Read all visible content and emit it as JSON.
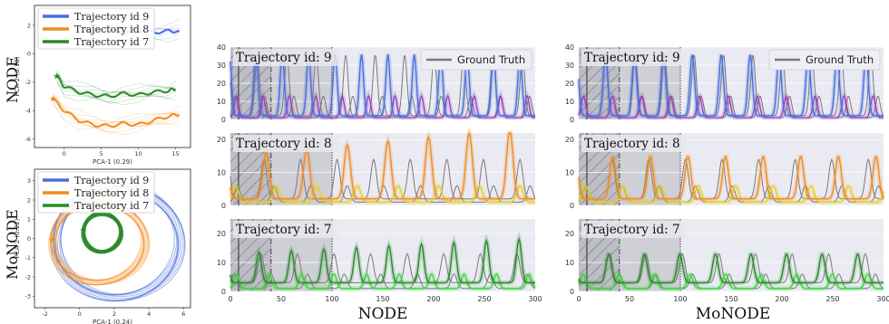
{
  "row_labels": {
    "top": "NODE",
    "bottom": "MoNODE"
  },
  "column_labels": {
    "node": "NODE",
    "monode": "MoNODE"
  },
  "chart_data": [
    {
      "type": "line",
      "panel": "pca-node",
      "xlabel": "PCA-1  (0.29)",
      "ylabel": "PCA-2  (0.18)",
      "xlim": [
        -4,
        17
      ],
      "ylim": [
        -6.6,
        3.4
      ],
      "xticks": [
        0,
        5,
        10,
        15
      ],
      "yticks": [
        2,
        0,
        -2,
        -4,
        -6
      ],
      "legend": [
        "Trajectory id 9",
        "Trajectory id 8",
        "Trajectory id 7"
      ],
      "series": [
        {
          "name": "Trajectory id 9",
          "color": "#4a6fdc",
          "x": [
            4,
            6,
            8,
            10,
            12,
            14,
            15.5
          ],
          "y": [
            1.5,
            1.6,
            1.5,
            1.7,
            1.5,
            1.6,
            1.6
          ]
        },
        {
          "name": "Trajectory id 8",
          "color": "#f28c1f",
          "x": [
            -1.5,
            0,
            2,
            4,
            6,
            8,
            10,
            12,
            14,
            15.5
          ],
          "y": [
            -3.2,
            -4,
            -4.7,
            -5,
            -5.1,
            -4.9,
            -5,
            -4.7,
            -4.4,
            -4.3
          ]
        },
        {
          "name": "Trajectory id 7",
          "color": "#2a8a2a",
          "x": [
            -1,
            0,
            2,
            4,
            6,
            8,
            10,
            12,
            14,
            15
          ],
          "y": [
            -1.6,
            -2.3,
            -2.7,
            -2.9,
            -3,
            -2.8,
            -2.9,
            -2.7,
            -2.6,
            -2.5
          ]
        }
      ]
    },
    {
      "type": "line",
      "panel": "pca-monode",
      "xlabel": "PCA-1  (0.24)",
      "ylabel": "PCA-2  (0.22)",
      "xlim": [
        -2.6,
        6.4
      ],
      "ylim": [
        -3.6,
        3.6
      ],
      "xticks": [
        -2,
        0,
        2,
        4,
        6
      ],
      "yticks": [
        3,
        2,
        1,
        0,
        -1,
        -2,
        -3
      ],
      "legend": [
        "Trajectory id 9",
        "Trajectory id 8",
        "Trajectory id 7"
      ],
      "series": [
        {
          "name": "Trajectory id 9",
          "color": "#4a6fdc",
          "shape": "large loop",
          "center": [
            2.2,
            -0.2
          ],
          "radius": [
            3.6,
            2.9
          ]
        },
        {
          "name": "Trajectory id 8",
          "color": "#f28c1f",
          "shape": "medium loop",
          "center": [
            1.1,
            -0.2
          ],
          "radius": [
            2.7,
            2.1
          ]
        },
        {
          "name": "Trajectory id 7",
          "color": "#2a8a2a",
          "shape": "small loop",
          "center": [
            1.3,
            0.3
          ],
          "radius": [
            1.1,
            1.0
          ]
        }
      ]
    },
    {
      "type": "line",
      "panel": "time-series",
      "x_range": [
        0,
        300
      ],
      "xticks": [
        0,
        50,
        100,
        150,
        200,
        250,
        300
      ],
      "shaded_regions": [
        [
          0,
          40
        ],
        [
          40,
          100
        ]
      ],
      "vertical_lines": [
        8,
        40,
        100
      ],
      "legend": [
        "Ground Truth"
      ],
      "methods": {
        "NODE": {
          "rows": [
            {
              "title": "Trajectory id: 9",
              "ylim": [
                0,
                40
              ],
              "yticks": [
                0,
                10,
                20,
                30,
                40
              ],
              "main": {
                "color": "#4a6fdc",
                "period": 26,
                "phase": 12,
                "peak": 36,
                "base": 2
              },
              "second": {
                "color": "#9b3fbf",
                "period": 26,
                "phase": 19,
                "peak": 13,
                "base": 1
              },
              "gt_main": {
                "period": 29,
                "phase": 12,
                "peak": 36,
                "base": 2
              },
              "gt_second": {
                "period": 29,
                "phase": 19,
                "peak": 13,
                "base": 1
              }
            },
            {
              "title": "Trajectory id: 8",
              "ylim": [
                0,
                22
              ],
              "yticks": [
                0,
                10,
                20
              ],
              "main": {
                "color": "#f28c1f",
                "period": 40,
                "phase": 15,
                "peak": 15,
                "base": 2,
                "growth": 0.0023
              },
              "second": {
                "color": "#e6d21a",
                "period": 40,
                "phase": 25,
                "peak": 6,
                "base": 1
              },
              "gt_main": {
                "period": 36,
                "phase": 15,
                "peak": 14,
                "base": 2
              },
              "gt_second": {
                "period": 36,
                "phase": 25,
                "peak": 6,
                "base": 1
              }
            },
            {
              "title": "Trajectory id: 7",
              "ylim": [
                0,
                25
              ],
              "yticks": [
                0,
                10,
                20
              ],
              "main": {
                "color": "#2a8a2a",
                "period": 32,
                "phase": 12,
                "peak": 13,
                "base": 3,
                "growth": 0.0018
              },
              "second": {
                "color": "#36d936",
                "period": 32,
                "phase": 22,
                "peak": 6,
                "base": 1
              },
              "gt_main": {
                "period": 36,
                "phase": 12,
                "peak": 13,
                "base": 3
              },
              "gt_second": {
                "period": 36,
                "phase": 22,
                "peak": 6,
                "base": 1
              }
            }
          ]
        },
        "MoNODE": {
          "rows": [
            {
              "title": "Trajectory id: 9",
              "ylim": [
                0,
                40
              ],
              "yticks": [
                0,
                10,
                20,
                30,
                40
              ],
              "main": {
                "color": "#4a6fdc",
                "period": 28.5,
                "phase": 12,
                "peak": 36,
                "base": 2
              },
              "second": {
                "color": "#9b3fbf",
                "period": 28.5,
                "phase": 19,
                "peak": 13,
                "base": 1
              },
              "gt_main": {
                "period": 29,
                "phase": 12,
                "peak": 36,
                "base": 2
              },
              "gt_second": {
                "period": 29,
                "phase": 19,
                "peak": 13,
                "base": 1
              }
            },
            {
              "title": "Trajectory id: 8",
              "ylim": [
                0,
                22
              ],
              "yticks": [
                0,
                10,
                20
              ],
              "main": {
                "color": "#f28c1f",
                "period": 37,
                "phase": 15,
                "peak": 15,
                "base": 2
              },
              "second": {
                "color": "#e6d21a",
                "period": 37,
                "phase": 25,
                "peak": 6,
                "base": 1
              },
              "gt_main": {
                "period": 36,
                "phase": 15,
                "peak": 14,
                "base": 2
              },
              "gt_second": {
                "period": 36,
                "phase": 25,
                "peak": 6,
                "base": 1
              }
            },
            {
              "title": "Trajectory id: 7",
              "ylim": [
                0,
                25
              ],
              "yticks": [
                0,
                10,
                20
              ],
              "main": {
                "color": "#2a8a2a",
                "period": 35,
                "phase": 12,
                "peak": 13,
                "base": 3
              },
              "second": {
                "color": "#36d936",
                "period": 35,
                "phase": 22,
                "peak": 6,
                "base": 1
              },
              "gt_main": {
                "period": 36,
                "phase": 12,
                "peak": 13,
                "base": 3
              },
              "gt_second": {
                "period": 36,
                "phase": 22,
                "peak": 6,
                "base": 1
              }
            }
          ]
        }
      }
    }
  ]
}
